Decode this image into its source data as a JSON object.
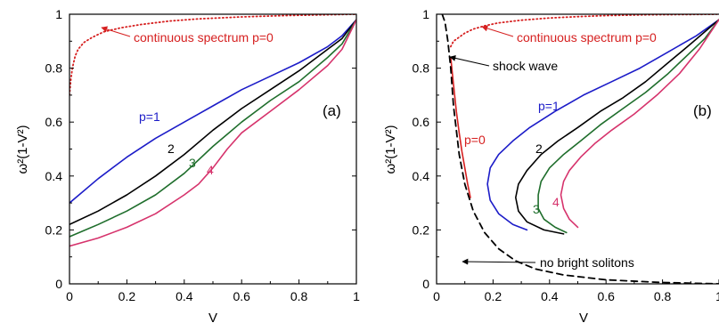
{
  "chart_data": [
    {
      "type": "line",
      "panel_label": "(a)",
      "xlabel": "V",
      "ylabel": "ω²(1-V²)",
      "xlim": [
        0,
        1
      ],
      "ylim": [
        0,
        1
      ],
      "xticks": [
        "0",
        "0.2",
        "0.4",
        "0.6",
        "0.8",
        "1"
      ],
      "yticks": [
        "0",
        "0.2",
        "0.4",
        "0.6",
        "0.8",
        "1"
      ],
      "series": [
        {
          "label": "p=1",
          "color": "#1c1cc8",
          "style": "solid",
          "x": [
            0,
            0.1,
            0.2,
            0.3,
            0.4,
            0.5,
            0.6,
            0.7,
            0.8,
            0.9,
            0.95,
            1.0
          ],
          "y": [
            0.3,
            0.39,
            0.47,
            0.54,
            0.6,
            0.66,
            0.72,
            0.77,
            0.82,
            0.88,
            0.92,
            0.98
          ]
        },
        {
          "label": "2",
          "color": "#000000",
          "style": "solid",
          "x": [
            0,
            0.1,
            0.2,
            0.3,
            0.4,
            0.5,
            0.6,
            0.7,
            0.8,
            0.9,
            0.95,
            1.0
          ],
          "y": [
            0.22,
            0.27,
            0.33,
            0.4,
            0.48,
            0.57,
            0.65,
            0.72,
            0.79,
            0.87,
            0.91,
            0.98
          ]
        },
        {
          "label": "3",
          "color": "#1f6e2c",
          "style": "solid",
          "x": [
            0,
            0.1,
            0.2,
            0.3,
            0.4,
            0.5,
            0.6,
            0.7,
            0.8,
            0.9,
            0.95,
            1.0
          ],
          "y": [
            0.175,
            0.22,
            0.27,
            0.33,
            0.41,
            0.51,
            0.6,
            0.68,
            0.75,
            0.84,
            0.89,
            0.98
          ]
        },
        {
          "label": "4",
          "color": "#d6336c",
          "style": "solid",
          "x": [
            0,
            0.1,
            0.2,
            0.3,
            0.4,
            0.45,
            0.5,
            0.55,
            0.6,
            0.7,
            0.8,
            0.9,
            0.95,
            1.0
          ],
          "y": [
            0.14,
            0.17,
            0.21,
            0.26,
            0.33,
            0.37,
            0.43,
            0.5,
            0.56,
            0.64,
            0.72,
            0.81,
            0.87,
            0.98
          ]
        },
        {
          "label": "continuous spectrum p=0",
          "color": "#d62020",
          "style": "dotted",
          "x": [
            0,
            0.005,
            0.01,
            0.02,
            0.03,
            0.05,
            0.08,
            0.12,
            0.18,
            0.25,
            0.35,
            0.45,
            0.6,
            0.75,
            0.9,
            1.0
          ],
          "y": [
            0.7,
            0.76,
            0.8,
            0.845,
            0.87,
            0.895,
            0.915,
            0.935,
            0.95,
            0.962,
            0.975,
            0.983,
            0.99,
            0.995,
            0.998,
            1.0
          ]
        }
      ],
      "annotations": [
        {
          "text": "continuous spectrum p=0",
          "color": "#d62020"
        },
        {
          "text": "p=1",
          "color": "#1c1cc8"
        },
        {
          "text": "2",
          "color": "#000000"
        },
        {
          "text": "3",
          "color": "#1f6e2c"
        },
        {
          "text": "4",
          "color": "#d6336c"
        }
      ]
    },
    {
      "type": "line",
      "panel_label": "(b)",
      "xlabel": "V",
      "ylabel": "ω²(1-V²)",
      "xlim": [
        0,
        1
      ],
      "ylim": [
        0,
        1
      ],
      "xticks": [
        "0",
        "0.2",
        "0.4",
        "0.6",
        "0.8",
        "1"
      ],
      "yticks": [
        "0",
        "0.2",
        "0.4",
        "0.6",
        "0.8",
        "1"
      ],
      "series": [
        {
          "label": "p=1",
          "color": "#1c1cc8",
          "style": "solid",
          "x": [
            0.32,
            0.27,
            0.22,
            0.19,
            0.18,
            0.19,
            0.22,
            0.27,
            0.33,
            0.42,
            0.52,
            0.62,
            0.72,
            0.82,
            0.92,
            1.0
          ],
          "y": [
            0.2,
            0.22,
            0.26,
            0.31,
            0.37,
            0.43,
            0.48,
            0.53,
            0.58,
            0.64,
            0.7,
            0.75,
            0.8,
            0.86,
            0.92,
            0.98
          ]
        },
        {
          "label": "2",
          "color": "#000000",
          "style": "solid",
          "x": [
            0.45,
            0.38,
            0.32,
            0.29,
            0.28,
            0.29,
            0.32,
            0.37,
            0.43,
            0.5,
            0.58,
            0.66,
            0.74,
            0.82,
            0.9,
            1.0
          ],
          "y": [
            0.185,
            0.2,
            0.23,
            0.27,
            0.32,
            0.37,
            0.42,
            0.48,
            0.53,
            0.58,
            0.64,
            0.69,
            0.75,
            0.82,
            0.89,
            0.98
          ]
        },
        {
          "label": "3",
          "color": "#1f6e2c",
          "style": "solid",
          "x": [
            0.46,
            0.42,
            0.38,
            0.36,
            0.36,
            0.37,
            0.4,
            0.45,
            0.51,
            0.58,
            0.66,
            0.74,
            0.82,
            0.9,
            0.95,
            1.0
          ],
          "y": [
            0.19,
            0.21,
            0.24,
            0.28,
            0.33,
            0.38,
            0.43,
            0.48,
            0.53,
            0.59,
            0.65,
            0.71,
            0.78,
            0.86,
            0.91,
            0.98
          ]
        },
        {
          "label": "4",
          "color": "#d6336c",
          "style": "solid",
          "x": [
            0.5,
            0.47,
            0.45,
            0.44,
            0.45,
            0.47,
            0.51,
            0.56,
            0.62,
            0.7,
            0.78,
            0.86,
            0.93,
            1.0
          ],
          "y": [
            0.21,
            0.24,
            0.28,
            0.33,
            0.38,
            0.42,
            0.47,
            0.52,
            0.57,
            0.63,
            0.7,
            0.78,
            0.87,
            0.98
          ]
        },
        {
          "label": "p=0",
          "color": "#d62020",
          "style": "solid",
          "x": [
            0.05,
            0.06,
            0.07,
            0.08,
            0.09,
            0.1,
            0.11,
            0.12
          ],
          "y": [
            0.84,
            0.74,
            0.64,
            0.56,
            0.49,
            0.43,
            0.37,
            0.32
          ]
        },
        {
          "label": "shock wave / no bright solitons",
          "color": "#000000",
          "style": "dashed",
          "x": [
            0.02,
            0.03,
            0.04,
            0.05,
            0.06,
            0.08,
            0.1,
            0.13,
            0.17,
            0.22,
            0.28,
            0.35,
            0.45,
            0.6,
            0.8,
            1.0
          ],
          "y": [
            1.0,
            0.97,
            0.9,
            0.8,
            0.66,
            0.48,
            0.37,
            0.27,
            0.19,
            0.13,
            0.085,
            0.055,
            0.033,
            0.015,
            0.005,
            0.0
          ]
        },
        {
          "label": "continuous spectrum p=0",
          "color": "#d62020",
          "style": "dotted",
          "x": [
            0.05,
            0.06,
            0.08,
            0.1,
            0.13,
            0.17,
            0.22,
            0.3,
            0.4,
            0.5,
            0.6,
            0.75,
            0.9,
            1.0
          ],
          "y": [
            0.88,
            0.9,
            0.915,
            0.93,
            0.945,
            0.957,
            0.968,
            0.978,
            0.986,
            0.991,
            0.995,
            0.998,
            0.999,
            1.0
          ]
        }
      ],
      "annotations": [
        {
          "text": "continuous spectrum p=0",
          "color": "#d62020"
        },
        {
          "text": "shock wave",
          "color": "#000000"
        },
        {
          "text": "p=1",
          "color": "#1c1cc8"
        },
        {
          "text": "p=0",
          "color": "#d62020"
        },
        {
          "text": "2",
          "color": "#000000"
        },
        {
          "text": "3",
          "color": "#1f6e2c"
        },
        {
          "text": "4",
          "color": "#d6336c"
        },
        {
          "text": "no bright solitons",
          "color": "#000000"
        }
      ]
    }
  ]
}
